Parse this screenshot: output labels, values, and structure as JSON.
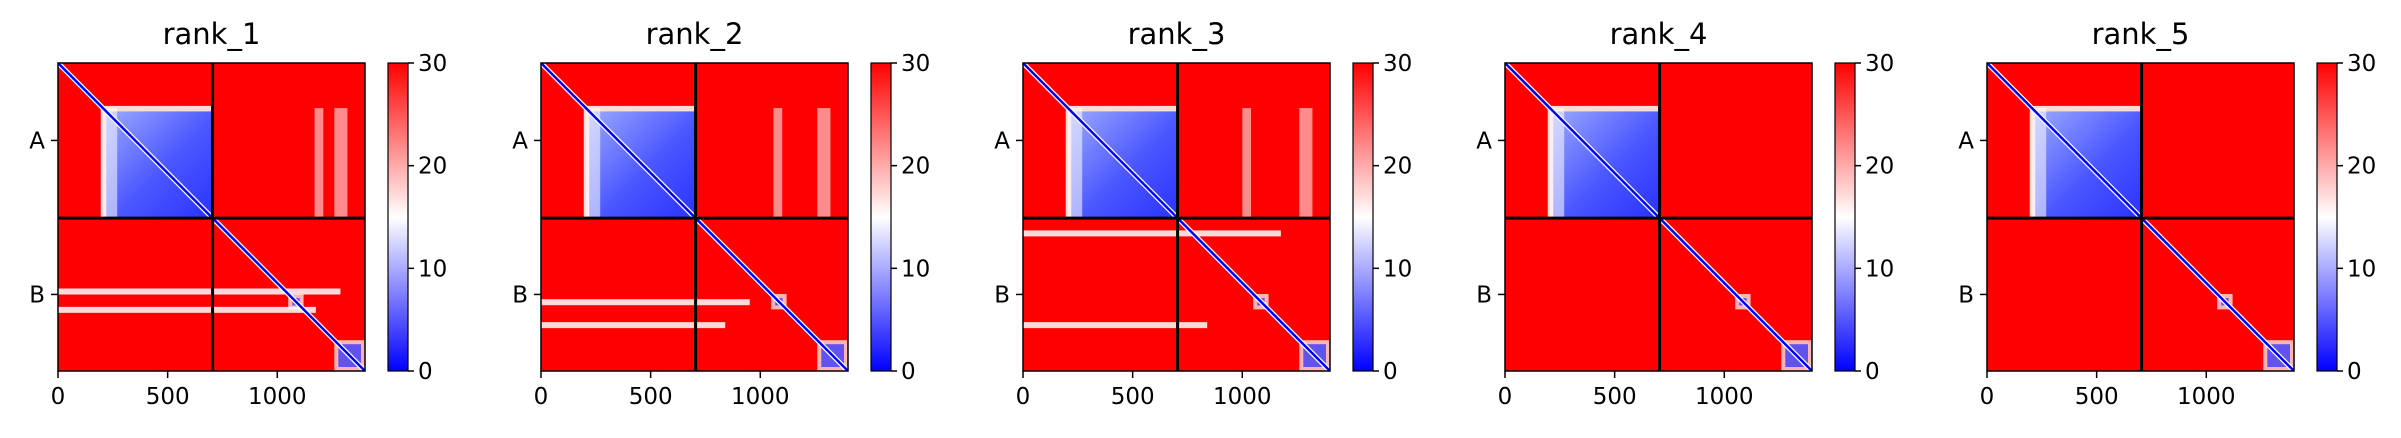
{
  "chart_data": {
    "type": "heatmap",
    "colormap": {
      "low": "#0000ff",
      "mid": "#ffffff",
      "high": "#ff0000"
    },
    "clim": [
      0,
      30
    ],
    "colorbar_ticks": [
      "0",
      "10",
      "20",
      "30"
    ],
    "xlim": [
      0,
      1400
    ],
    "x_ticks": [
      {
        "value": 0,
        "label": "0"
      },
      {
        "value": 500,
        "label": "500"
      },
      {
        "value": 1000,
        "label": "1000"
      }
    ],
    "chain_boundary": 705,
    "y_categories": [
      {
        "label": "A",
        "center": 352
      },
      {
        "label": "B",
        "center": 1052
      }
    ],
    "grid": false,
    "legend": "colorbar-right",
    "panels": [
      {
        "title": "rank_1",
        "domain_a": [
          205,
          705
        ],
        "domain_b_blocks": [
          [
            1050,
            1120
          ],
          [
            1260,
            1400
          ]
        ],
        "a_patches": [
          [
            205,
            270
          ],
          [
            1170,
            1210
          ],
          [
            1260,
            1320
          ]
        ],
        "b_stripes": [
          [
            0.48,
            230
          ],
          [
            0.6,
            210
          ]
        ]
      },
      {
        "title": "rank_2",
        "domain_a": [
          205,
          705
        ],
        "domain_b_blocks": [
          [
            1050,
            1120
          ],
          [
            1260,
            1400
          ]
        ],
        "a_patches": [
          [
            205,
            270
          ],
          [
            1060,
            1100
          ],
          [
            1260,
            1320
          ]
        ],
        "b_stripes": [
          [
            0.55,
            170
          ],
          [
            0.7,
            150
          ]
        ]
      },
      {
        "title": "rank_3",
        "domain_a": [
          205,
          705
        ],
        "domain_b_blocks": [
          [
            1050,
            1120
          ],
          [
            1260,
            1400
          ]
        ],
        "a_patches": [
          [
            205,
            270
          ],
          [
            1000,
            1040
          ],
          [
            1260,
            1320
          ]
        ],
        "b_stripes": [
          [
            0.1,
            210
          ],
          [
            0.7,
            150
          ]
        ]
      },
      {
        "title": "rank_4",
        "domain_a": [
          205,
          705
        ],
        "domain_b_blocks": [
          [
            1050,
            1120
          ],
          [
            1260,
            1400
          ]
        ],
        "a_patches": [
          [
            205,
            270
          ]
        ],
        "b_stripes": []
      },
      {
        "title": "rank_5",
        "domain_a": [
          205,
          705
        ],
        "domain_b_blocks": [
          [
            1050,
            1120
          ],
          [
            1260,
            1400
          ]
        ],
        "a_patches": [
          [
            205,
            270
          ]
        ],
        "b_stripes": []
      }
    ]
  }
}
